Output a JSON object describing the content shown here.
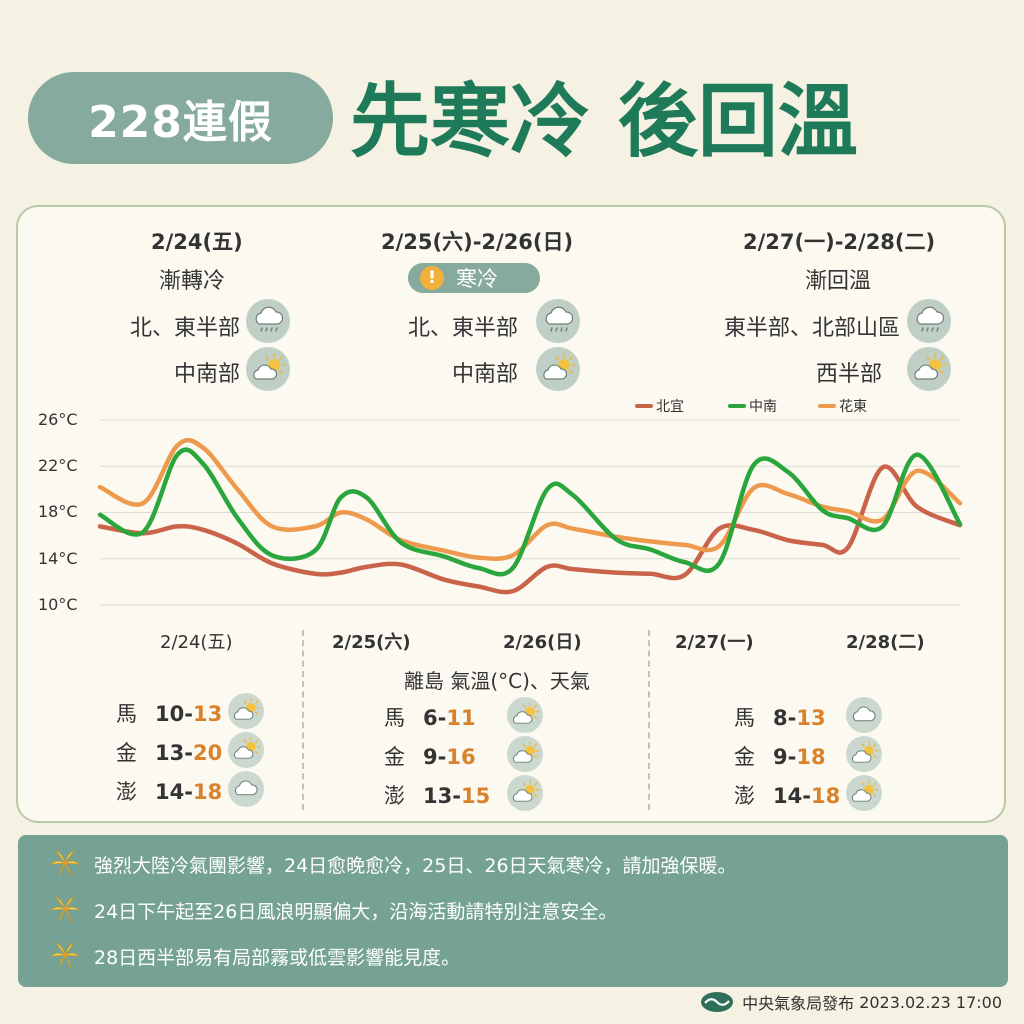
{
  "header": {
    "badge": "228連假",
    "title": "先寒冷 後回溫"
  },
  "periods": [
    {
      "date": "2/24(五)",
      "condition": "漸轉冷",
      "regions": [
        {
          "name": "北、東半部",
          "icon": "rain-cloud-icon"
        },
        {
          "name": "中南部",
          "icon": "partly-sunny-icon"
        }
      ]
    },
    {
      "date": "2/25(六)-2/26(日)",
      "badge": "寒冷",
      "regions": [
        {
          "name": "北、東半部",
          "icon": "rain-cloud-icon"
        },
        {
          "name": "中南部",
          "icon": "partly-sunny-icon"
        }
      ]
    },
    {
      "date": "2/27(一)-2/28(二)",
      "condition": "漸回溫",
      "regions": [
        {
          "name": "東半部、北部山區",
          "icon": "rain-cloud-icon"
        },
        {
          "name": "西半部",
          "icon": "partly-sunny-icon"
        }
      ]
    }
  ],
  "chart_data": {
    "type": "line",
    "categories": [
      "2/24(五)",
      "2/25(六)",
      "2/26(日)",
      "2/27(一)",
      "2/28(二)"
    ],
    "y_ticks": [
      "26°C",
      "22°C",
      "18°C",
      "14°C",
      "10°C"
    ],
    "ylim": [
      10,
      26
    ],
    "x": [
      0,
      0.25,
      0.45,
      0.6,
      0.8,
      1,
      1.25,
      1.4,
      1.55,
      1.75,
      2,
      2.2,
      2.4,
      2.6,
      2.75,
      3,
      3.2,
      3.4,
      3.6,
      3.8,
      4,
      4.2,
      4.35,
      4.55,
      4.75,
      5
    ],
    "legend_position": "top-right",
    "grid": true,
    "series": [
      {
        "name": "北宜",
        "color": "#c9634a",
        "values": [
          16.8,
          16.2,
          16.8,
          16.5,
          15.3,
          13.6,
          12.7,
          12.8,
          13.3,
          13.5,
          12.2,
          11.6,
          11.2,
          13.3,
          13.1,
          12.8,
          12.7,
          12.6,
          16.6,
          16.5,
          15.6,
          15.2,
          15.0,
          21.9,
          18.5,
          16.9
        ]
      },
      {
        "name": "中南",
        "color": "#2aa63c",
        "values": [
          17.8,
          16.3,
          23.0,
          22.2,
          17.5,
          14.3,
          14.7,
          19.3,
          19.3,
          15.4,
          14.2,
          13.2,
          13.2,
          20.0,
          19.5,
          15.7,
          14.8,
          13.7,
          13.6,
          22.1,
          21.5,
          18.2,
          17.5,
          16.8,
          23.0,
          17.0
        ]
      },
      {
        "name": "花東",
        "color": "#ee9a4e",
        "values": [
          20.2,
          18.8,
          23.8,
          23.6,
          20.0,
          16.8,
          16.8,
          18.0,
          17.4,
          15.6,
          14.7,
          14.1,
          14.3,
          16.9,
          16.6,
          15.9,
          15.5,
          15.2,
          15.1,
          20.1,
          19.6,
          18.5,
          18.1,
          17.4,
          21.6,
          18.8
        ]
      }
    ]
  },
  "islands": {
    "title": "離島 氣溫(°C)、天氣",
    "groups": [
      [
        {
          "name": "馬",
          "low": "10-",
          "high": "13",
          "icon": "partly-sunny-icon"
        },
        {
          "name": "金",
          "low": "13-",
          "high": "20",
          "icon": "partly-sunny-icon"
        },
        {
          "name": "澎",
          "low": "14-",
          "high": "18",
          "icon": "cloud-icon"
        }
      ],
      [
        {
          "name": "馬",
          "low": "6-",
          "high": "11",
          "icon": "partly-sunny-icon"
        },
        {
          "name": "金",
          "low": "9-",
          "high": "16",
          "icon": "partly-sunny-icon"
        },
        {
          "name": "澎",
          "low": "13-",
          "high": "15",
          "icon": "partly-sunny-icon"
        }
      ],
      [
        {
          "name": "馬",
          "low": "8-",
          "high": "13",
          "icon": "cloud-icon"
        },
        {
          "name": "金",
          "low": "9-",
          "high": "18",
          "icon": "partly-sunny-icon"
        },
        {
          "name": "澎",
          "low": "14-",
          "high": "18",
          "icon": "partly-sunny-icon"
        }
      ]
    ]
  },
  "notes": [
    "強烈大陸冷氣團影響，24日愈晚愈冷，25日、26日天氣寒冷，請加強保暖。",
    "24日下午起至26日風浪明顯偏大，沿海活動請特別注意安全。",
    "28日西半部易有局部霧或低雲影響能見度。"
  ],
  "footer": {
    "publisher": "中央氣象局發布",
    "datetime": "2023.02.23 17:00"
  },
  "colors": {
    "accent": "#1f7a5a",
    "badge": "#86aa9d",
    "notes_bg": "#76a295",
    "high_temp": "#d9822b"
  }
}
